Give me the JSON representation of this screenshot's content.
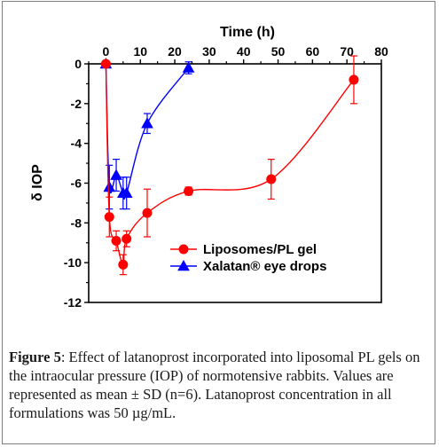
{
  "caption": {
    "label": "Figure 5",
    "text": ": Effect of latanoprost incorporated into liposomal PL gels on the intraocular pressure (IOP) of normotensive rabbits. Values are represented as mean ± SD (n=6). Latanoprost concentration in all formulations was 50 µg/mL."
  },
  "chart_data": {
    "type": "line",
    "xlabel": "Time (h)",
    "ylabel": "δ IOP",
    "xlim": [
      -5,
      80
    ],
    "ylim": [
      -12,
      0
    ],
    "x_ticks": [
      0,
      10,
      20,
      30,
      40,
      50,
      60,
      70,
      80
    ],
    "y_ticks": [
      0,
      -2,
      -4,
      -6,
      -8,
      -10,
      -12
    ],
    "x_axis_position": "top",
    "grid": false,
    "legend_position": "bottom-center",
    "series": [
      {
        "name": "Liposomes/PL gel",
        "color": "#ff0000",
        "marker": "circle",
        "x": [
          0,
          1,
          3,
          5,
          6,
          12,
          24,
          48,
          72
        ],
        "y": [
          0,
          -7.7,
          -8.9,
          -10.1,
          -8.8,
          -7.5,
          -6.4,
          -5.8,
          -0.8
        ],
        "error": [
          0,
          1.0,
          0.5,
          0.5,
          0.4,
          1.2,
          0.2,
          1.0,
          1.2
        ]
      },
      {
        "name": "Xalatan® eye drops",
        "color": "#0000ff",
        "marker": "triangle",
        "x": [
          0,
          1,
          3,
          5,
          6,
          12,
          24
        ],
        "y": [
          0,
          -6.2,
          -5.6,
          -6.5,
          -6.5,
          -3.0,
          -0.2
        ],
        "error": [
          0,
          1.1,
          0.8,
          0.8,
          0.8,
          0.5,
          0.3
        ]
      }
    ]
  }
}
